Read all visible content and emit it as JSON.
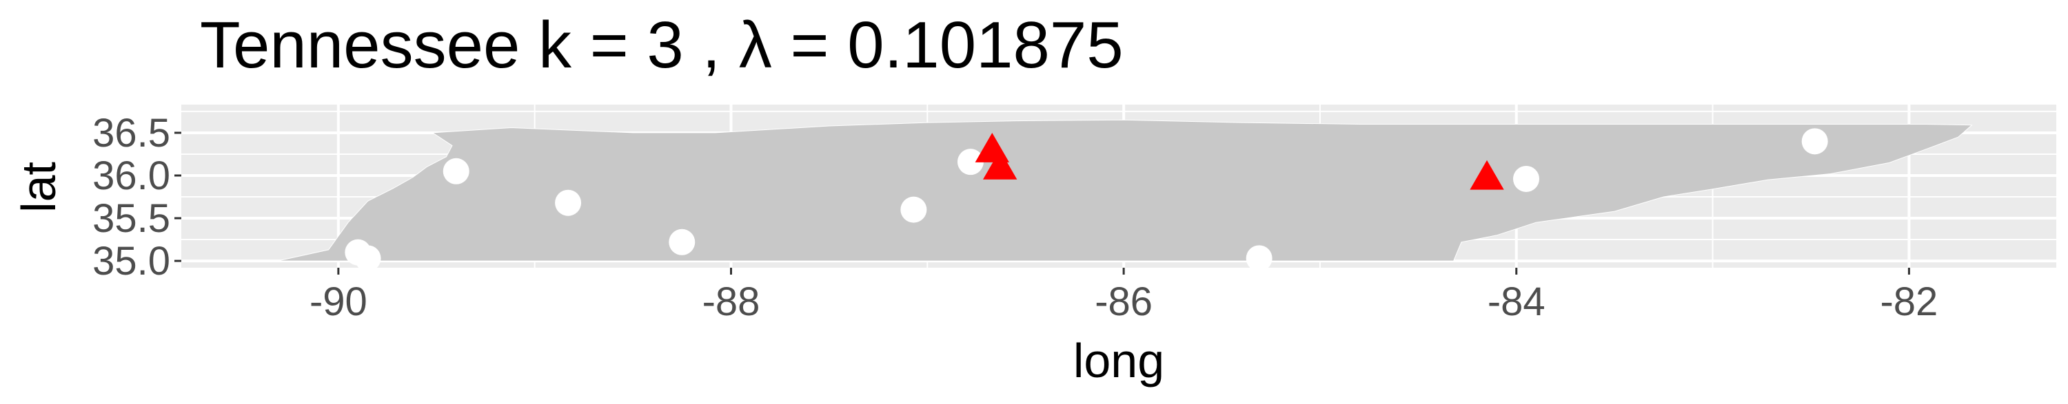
{
  "chart_data": {
    "type": "scatter",
    "title": "Tennessee  k =  3 ,  λ  =  0.101875",
    "xlabel": "long",
    "ylabel": "lat",
    "xlim": [
      -90.8,
      -81.25
    ],
    "ylim": [
      34.92,
      36.83
    ],
    "x_ticks": [
      -90,
      -88,
      -86,
      -84,
      -82
    ],
    "x_tick_labels": [
      "-90",
      "-88",
      "-86",
      "-84",
      "-82"
    ],
    "y_ticks": [
      35.0,
      35.5,
      36.0,
      36.5
    ],
    "y_tick_labels": [
      "35.0",
      "35.5",
      "36.0",
      "36.5"
    ],
    "grid": true,
    "background": "#ebebeb",
    "region_fill": "#c8c8c8",
    "region": "Tennessee",
    "series": [
      {
        "marker": "circle",
        "color": "#ffffff",
        "x": [
          -89.9,
          -89.85,
          -89.4,
          -88.83,
          -88.25,
          -87.07,
          -86.78,
          -85.31,
          -83.95,
          -82.48
        ],
        "y": [
          35.1,
          35.03,
          36.05,
          35.68,
          35.22,
          35.6,
          36.16,
          35.03,
          35.96,
          36.4
        ]
      },
      {
        "marker": "triangle",
        "color": "#ff0000",
        "x": [
          -86.67,
          -86.63,
          -84.15
        ],
        "y": [
          36.29,
          36.09,
          35.97
        ]
      }
    ]
  }
}
